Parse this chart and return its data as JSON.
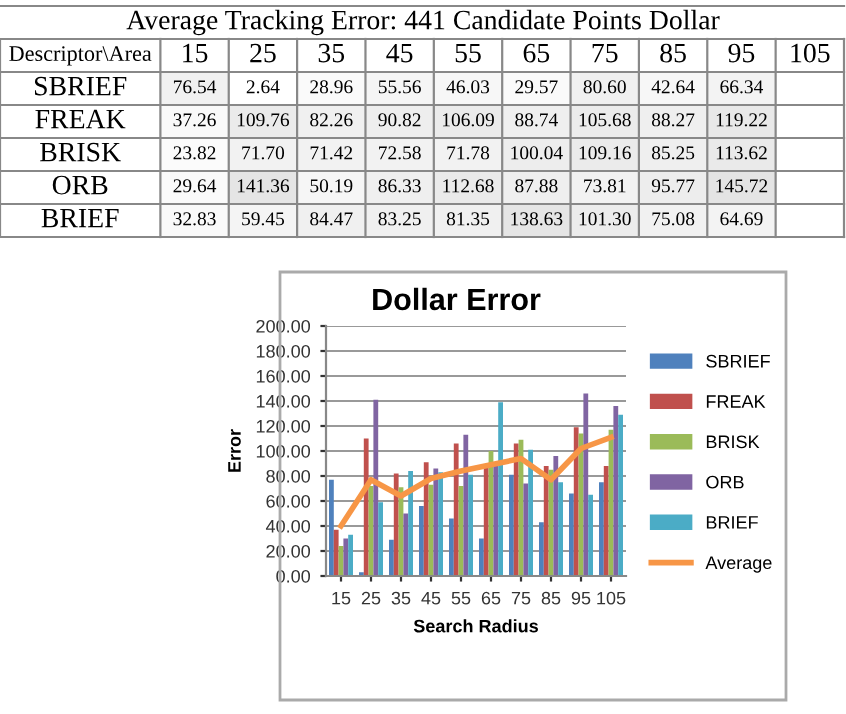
{
  "chart_data": [
    {
      "type": "heatmap",
      "title": "Average Tracking Error: 441 Candidate Points Dollar",
      "annotations": [
        "Descriptor\\Area"
      ],
      "categories": [
        "15",
        "25",
        "35",
        "45",
        "55",
        "65",
        "75",
        "85",
        "95",
        "105"
      ],
      "y_categories": [
        "SBRIEF",
        "FREAK",
        "BRISK",
        "ORB",
        "BRIEF"
      ],
      "cells": [
        [
          76.54,
          2.64,
          28.96,
          55.56,
          46.03,
          29.57,
          80.6,
          42.64,
          66.34,
          null
        ],
        [
          37.26,
          109.76,
          82.26,
          90.82,
          106.09,
          88.74,
          105.68,
          88.27,
          119.22,
          null
        ],
        [
          23.82,
          71.7,
          71.42,
          72.58,
          71.78,
          100.04,
          109.16,
          85.25,
          113.62,
          null
        ],
        [
          29.64,
          141.36,
          50.19,
          86.33,
          112.68,
          87.88,
          73.81,
          95.77,
          145.72,
          null
        ],
        [
          32.83,
          59.45,
          84.47,
          83.25,
          81.35,
          138.63,
          101.3,
          75.08,
          64.69,
          null
        ]
      ],
      "cell_labels": [
        [
          "76.54",
          "2.64",
          "28.96",
          "55.56",
          "46.03",
          "29.57",
          "80.60",
          "42.64",
          "66.34",
          null
        ],
        [
          "37.26",
          "109.76",
          "82.26",
          "90.82",
          "106.09",
          "88.74",
          "105.68",
          "88.27",
          "119.22",
          null
        ],
        [
          "23.82",
          "71.70",
          "71.42",
          "72.58",
          "71.78",
          "100.04",
          "109.16",
          "85.25",
          "113.62",
          null
        ],
        [
          "29.64",
          "141.36",
          "50.19",
          "86.33",
          "112.68",
          "87.88",
          "73.81",
          "95.77",
          "145.72",
          null
        ],
        [
          "32.83",
          "59.45",
          "84.47",
          "83.25",
          "81.35",
          "138.63",
          "101.30",
          "75.08",
          "64.69",
          null
        ]
      ]
    },
    {
      "type": "bar",
      "title": "Dollar Error",
      "xlabel": "Search Radius",
      "ylabel": "Error",
      "categories": [
        "15",
        "25",
        "35",
        "45",
        "55",
        "65",
        "75",
        "85",
        "95",
        "105"
      ],
      "series": [
        {
          "name": "SBRIEF",
          "color": "#4f81bd",
          "values": [
            77,
            3,
            29,
            56,
            46,
            30,
            81,
            43,
            66,
            75
          ]
        },
        {
          "name": "FREAK",
          "color": "#c0504d",
          "values": [
            37,
            110,
            82,
            91,
            106,
            89,
            106,
            88,
            119,
            88
          ]
        },
        {
          "name": "BRISK",
          "color": "#9bbb59",
          "values": [
            24,
            72,
            71,
            73,
            72,
            100,
            109,
            85,
            114,
            117
          ]
        },
        {
          "name": "ORB",
          "color": "#8064a2",
          "values": [
            30,
            141,
            50,
            86,
            113,
            88,
            74,
            96,
            146,
            136
          ]
        },
        {
          "name": "BRIEF",
          "color": "#4bacc6",
          "values": [
            33,
            59,
            84,
            83,
            81,
            139,
            101,
            75,
            65,
            129
          ]
        },
        {
          "name": "Average",
          "type": "line",
          "color": "#f79646",
          "values": [
            40,
            77,
            64,
            78,
            84,
            89,
            94,
            77,
            102,
            111
          ]
        }
      ],
      "ylim": [
        0,
        200
      ],
      "yticks": [
        {
          "value": 0,
          "label": "0.00"
        },
        {
          "value": 20,
          "label": "20.00"
        },
        {
          "value": 40,
          "label": "40.00"
        },
        {
          "value": 60,
          "label": "60.00"
        },
        {
          "value": 80,
          "label": "80.00"
        },
        {
          "value": 100,
          "label": "100.00"
        },
        {
          "value": 120,
          "label": "120.00"
        },
        {
          "value": 140,
          "label": "140.00"
        },
        {
          "value": 160,
          "label": "160.00"
        },
        {
          "value": 180,
          "label": "180.00"
        },
        {
          "value": 200,
          "label": "200.00"
        }
      ],
      "grid": "y",
      "legend": "right",
      "marker": "none",
      "line_style": "solid"
    }
  ]
}
